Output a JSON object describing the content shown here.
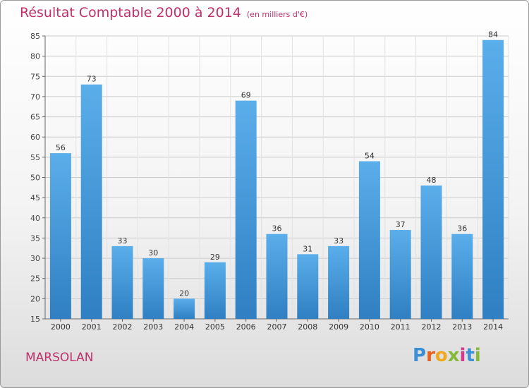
{
  "title": "Résultat Comptable 2000 à 2014",
  "subtitle": "(en milliers d'€)",
  "commune": "MARSOLAN",
  "logo": {
    "text": "Proxiti",
    "colors": [
      "#3b8fd6",
      "#e8601c",
      "#f2a81d",
      "#86b83a",
      "#d43b8c",
      "#3b8fd6",
      "#86b83a"
    ]
  },
  "colors": {
    "title": "#c0306a",
    "bar_light": "#5aaeea",
    "bar_dark": "#2f7fc2",
    "grid": "#cccccc"
  },
  "chart_data": {
    "type": "bar",
    "title": "Résultat Comptable 2000 à 2014",
    "xlabel": "",
    "ylabel": "",
    "categories": [
      "2000",
      "2001",
      "2002",
      "2003",
      "2004",
      "2005",
      "2006",
      "2007",
      "2008",
      "2009",
      "2010",
      "2011",
      "2012",
      "2013",
      "2014"
    ],
    "values": [
      56,
      73,
      33,
      30,
      20,
      29,
      69,
      36,
      31,
      33,
      54,
      37,
      48,
      36,
      84
    ],
    "ylim": [
      15,
      85
    ],
    "yticks": [
      15,
      20,
      25,
      30,
      35,
      40,
      45,
      50,
      55,
      60,
      65,
      70,
      75,
      80,
      85
    ],
    "grid": true,
    "data_labels": true
  }
}
